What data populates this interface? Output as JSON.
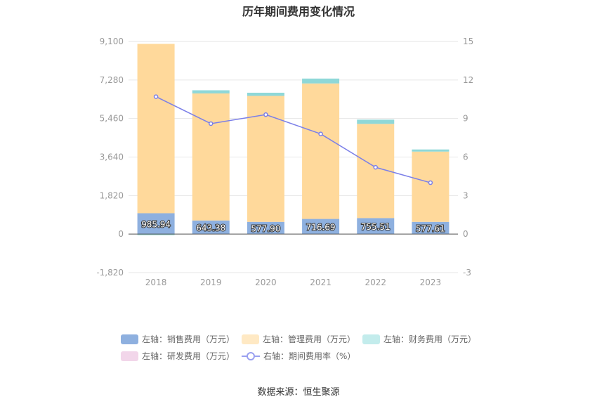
{
  "title": "历年期间费用变化情况",
  "source": "数据来源：恒生聚源",
  "chart_data": {
    "type": "bar",
    "stacked": true,
    "categories": [
      "2018",
      "2019",
      "2020",
      "2021",
      "2022",
      "2023"
    ],
    "left_axis": {
      "min": -1820,
      "max": 9100,
      "ticks": [
        "-1,820",
        "0",
        "1,820",
        "3,640",
        "5,460",
        "7,280",
        "9,100"
      ]
    },
    "right_axis": {
      "min": -3,
      "max": 15,
      "ticks": [
        "-3",
        "0",
        "3",
        "6",
        "9",
        "12",
        "15"
      ]
    },
    "series": [
      {
        "name": "左轴：销售费用（万元）",
        "axis": "left",
        "type": "bar",
        "color": "#8eb0df",
        "values": [
          985.94,
          643.38,
          577.9,
          716.69,
          755.51,
          577.61
        ],
        "labels": [
          "985.94",
          "643.38",
          "577.90",
          "716.69",
          "755.51",
          "577.61"
        ]
      },
      {
        "name": "左轴：管理费用（万元）",
        "axis": "left",
        "type": "bar",
        "color": "#ffd99b",
        "values": [
          8000,
          6000,
          5950,
          6400,
          4450,
          3320
        ]
      },
      {
        "name": "左轴：财务费用（万元）",
        "axis": "left",
        "type": "bar",
        "color": "#8fd8d8",
        "values": [
          -50,
          150,
          150,
          230,
          200,
          100
        ]
      },
      {
        "name": "左轴：研发费用（万元）",
        "axis": "left",
        "type": "bar",
        "color": "#f2d6ea",
        "values": [
          0,
          0,
          0,
          0,
          0,
          0
        ]
      },
      {
        "name": "右轴：期间费用率（%）",
        "axis": "right",
        "type": "line",
        "color": "#7b7fe8",
        "values": [
          10.7,
          8.6,
          9.3,
          7.8,
          5.2,
          4.0
        ]
      }
    ],
    "legend_position": "bottom",
    "grid": true
  }
}
